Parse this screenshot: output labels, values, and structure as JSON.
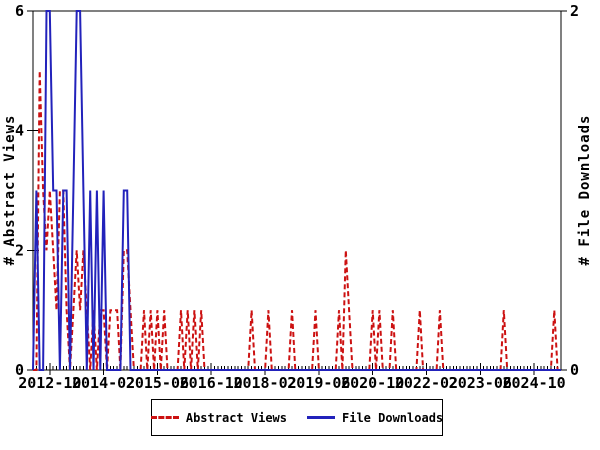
{
  "chart_data": {
    "type": "line",
    "title": "",
    "x_unit": "month",
    "x": [
      "2012-05",
      "2012-06",
      "2012-07",
      "2012-08",
      "2012-09",
      "2012-10",
      "2012-11",
      "2012-12",
      "2013-01",
      "2013-02",
      "2013-03",
      "2013-04",
      "2013-05",
      "2013-06",
      "2013-07",
      "2013-08",
      "2013-09",
      "2013-10",
      "2013-11",
      "2013-12",
      "2014-01",
      "2014-02",
      "2014-03",
      "2014-04",
      "2014-05",
      "2014-06",
      "2014-07",
      "2014-08",
      "2014-09",
      "2014-10",
      "2014-11",
      "2014-12",
      "2015-01",
      "2015-02",
      "2015-03",
      "2015-04",
      "2015-05",
      "2015-06",
      "2015-07",
      "2015-08",
      "2015-09",
      "2015-10",
      "2015-11",
      "2015-12",
      "2016-01",
      "2016-02",
      "2016-03",
      "2016-04",
      "2016-05",
      "2016-06",
      "2016-07",
      "2016-08",
      "2016-09",
      "2016-10",
      "2016-11",
      "2016-12",
      "2017-01",
      "2017-02",
      "2017-03",
      "2017-04",
      "2017-05",
      "2017-06",
      "2017-07",
      "2017-08",
      "2017-09",
      "2017-10",
      "2017-11",
      "2017-12",
      "2018-01",
      "2018-02",
      "2018-03",
      "2018-04",
      "2018-05",
      "2018-06",
      "2018-07",
      "2018-08",
      "2018-09",
      "2018-10",
      "2018-11",
      "2018-12",
      "2019-01",
      "2019-02",
      "2019-03",
      "2019-04",
      "2019-05",
      "2019-06",
      "2019-07",
      "2019-08",
      "2019-09",
      "2019-10",
      "2019-11",
      "2019-12",
      "2020-01",
      "2020-02",
      "2020-03",
      "2020-04",
      "2020-05",
      "2020-06",
      "2020-07",
      "2020-08",
      "2020-09",
      "2020-10",
      "2020-11",
      "2020-12",
      "2021-01",
      "2021-02",
      "2021-03",
      "2021-04",
      "2021-05",
      "2021-06",
      "2021-07",
      "2021-08",
      "2021-09",
      "2021-10",
      "2021-11",
      "2021-12",
      "2022-01",
      "2022-02",
      "2022-03",
      "2022-04",
      "2022-05",
      "2022-06",
      "2022-07",
      "2022-08",
      "2022-09",
      "2022-10",
      "2022-11",
      "2022-12",
      "2023-01",
      "2023-02",
      "2023-03",
      "2023-04",
      "2023-05",
      "2023-06",
      "2023-07",
      "2023-08",
      "2023-09",
      "2023-10",
      "2023-11",
      "2023-12",
      "2024-01",
      "2024-02",
      "2024-03",
      "2024-04",
      "2024-05",
      "2024-06",
      "2024-07",
      "2024-08",
      "2024-09",
      "2024-10",
      "2024-11",
      "2024-12",
      "2025-01",
      "2025-02",
      "2025-03",
      "2025-04",
      "2025-05",
      "2025-06"
    ],
    "series": [
      {
        "name": "Abstract Views",
        "axis": "left",
        "color": "#cc1111",
        "style": "dashed",
        "values": [
          0,
          0,
          5,
          3,
          2,
          3,
          2,
          1,
          3,
          3,
          1,
          0,
          1,
          2,
          1,
          2,
          1,
          0,
          1,
          0,
          1,
          1,
          0,
          1,
          1,
          1,
          0,
          2,
          2,
          1,
          0,
          0,
          0,
          1,
          0,
          1,
          0,
          1,
          0,
          1,
          0,
          0,
          0,
          0,
          1,
          0,
          1,
          0,
          1,
          0,
          1,
          0,
          0,
          0,
          0,
          0,
          0,
          0,
          0,
          0,
          0,
          0,
          0,
          0,
          0,
          1,
          0,
          0,
          0,
          0,
          1,
          0,
          0,
          0,
          0,
          0,
          0,
          1,
          0,
          0,
          0,
          0,
          0,
          0,
          1,
          0,
          0,
          0,
          0,
          0,
          0,
          1,
          0,
          2,
          1,
          0,
          0,
          0,
          0,
          0,
          0,
          1,
          0,
          1,
          0,
          0,
          0,
          1,
          0,
          0,
          0,
          0,
          0,
          0,
          0,
          1,
          0,
          0,
          0,
          0,
          0,
          1,
          0,
          0,
          0,
          0,
          0,
          0,
          0,
          0,
          0,
          0,
          0,
          0,
          0,
          0,
          0,
          0,
          0,
          0,
          1,
          0,
          0,
          0,
          0,
          0,
          0,
          0,
          0,
          0,
          0,
          0,
          0,
          0,
          0,
          1,
          0,
          0
        ]
      },
      {
        "name": "File Downloads",
        "axis": "right",
        "color": "#2222bb",
        "style": "solid",
        "values": [
          0,
          1,
          0,
          0,
          2,
          2,
          1,
          1,
          0,
          1,
          1,
          0,
          1,
          2,
          2,
          1,
          0,
          1,
          0,
          1,
          0,
          1,
          0,
          0,
          0,
          0,
          0,
          1,
          1,
          0,
          0,
          0,
          0,
          0,
          0,
          0,
          0,
          0,
          0,
          0,
          0,
          0,
          0,
          0,
          0,
          0,
          0,
          0,
          0,
          0,
          0,
          0,
          0,
          0,
          0,
          0,
          0,
          0,
          0,
          0,
          0,
          0,
          0,
          0,
          0,
          0,
          0,
          0,
          0,
          0,
          0,
          0,
          0,
          0,
          0,
          0,
          0,
          0,
          0,
          0,
          0,
          0,
          0,
          0,
          0,
          0,
          0,
          0,
          0,
          0,
          0,
          0,
          0,
          0,
          0,
          0,
          0,
          0,
          0,
          0,
          0,
          0,
          0,
          0,
          0,
          0,
          0,
          0,
          0,
          0,
          0,
          0,
          0,
          0,
          0,
          0,
          0,
          0,
          0,
          0,
          0,
          0,
          0,
          0,
          0,
          0,
          0,
          0,
          0,
          0,
          0,
          0,
          0,
          0,
          0,
          0,
          0,
          0,
          0,
          0,
          0,
          0,
          0,
          0,
          0,
          0,
          0,
          0,
          0,
          0,
          0,
          0,
          0,
          0,
          0,
          0,
          0,
          0
        ]
      }
    ],
    "left_axis": {
      "label": "# Abstract Views",
      "min": 0,
      "max": 6,
      "ticks": [
        0,
        2,
        4,
        6
      ]
    },
    "right_axis": {
      "label": "# File Downloads",
      "min": 0,
      "max": 2,
      "ticks": [
        0,
        2
      ]
    },
    "x_axis": {
      "major_tick_labels": [
        "2012-10",
        "2014-02",
        "2015-06",
        "2016-10",
        "2018-02",
        "2019-06",
        "2020-10",
        "2022-02",
        "2023-06",
        "2024-10"
      ],
      "major_tick_interval_months": 16,
      "minor_tick_interval_months": 1
    },
    "legend": {
      "position": "bottom-center",
      "entries": [
        "Abstract Views",
        "File Downloads"
      ]
    },
    "grid": false,
    "ylim_left": [
      0,
      6
    ],
    "ylim_right": [
      0,
      2
    ]
  },
  "colors": {
    "background": "#ffffff",
    "axis": "#000000",
    "text": "#000000",
    "abstract_views": "#cc1111",
    "file_downloads": "#2222bb"
  }
}
